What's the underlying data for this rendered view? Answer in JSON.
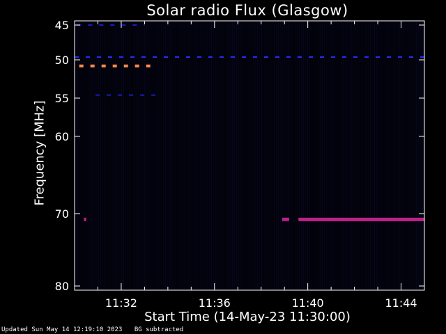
{
  "chart_data": {
    "type": "heatmap",
    "title": "Solar radio Flux (Glasgow)",
    "xlabel": "Start Time (14-May-23 11:30:00)",
    "ylabel": "Frequency [MHz]",
    "x_start": "11:30:00",
    "x_end": "11:45:00",
    "xlim_minutes": [
      0,
      15
    ],
    "x_ticks": [
      {
        "label": "11:32",
        "minute": 2
      },
      {
        "label": "11:36",
        "minute": 6
      },
      {
        "label": "11:40",
        "minute": 10
      },
      {
        "label": "11:44",
        "minute": 14
      }
    ],
    "ylim": [
      45,
      80
    ],
    "y_ticks": [
      {
        "label": "45",
        "value": 45
      },
      {
        "label": "50",
        "value": 50
      },
      {
        "label": "55",
        "value": 55
      },
      {
        "label": "60",
        "value": 60
      },
      {
        "label": "70",
        "value": 70
      },
      {
        "label": "80",
        "value": 80
      }
    ],
    "y_scale": "nonlinear",
    "features": [
      {
        "freq": 50.8,
        "start": 0.2,
        "end": 3.5,
        "dashed": true,
        "color": "#ff8c4a",
        "thick": 4
      },
      {
        "freq": 49.6,
        "start": 0.0,
        "end": 15.0,
        "dashed": true,
        "color": "#2a2aff",
        "thick": 2
      },
      {
        "freq": 54.6,
        "start": 0.9,
        "end": 3.5,
        "dashed": true,
        "color": "#1c1cc0",
        "thick": 2
      },
      {
        "freq": 45.0,
        "start": 0.1,
        "end": 3.0,
        "dashed": true,
        "color": "#1c1cc0",
        "thick": 2
      },
      {
        "freq": 70.8,
        "start": 0.4,
        "end": 0.5,
        "dashed": false,
        "color": "#c0208a",
        "thick": 5
      },
      {
        "freq": 70.8,
        "start": 8.9,
        "end": 9.2,
        "dashed": false,
        "color": "#c0208a",
        "thick": 5
      },
      {
        "freq": 70.8,
        "start": 9.6,
        "end": 15.0,
        "dashed": false,
        "color": "#c0208a",
        "thick": 5
      }
    ]
  },
  "footer": {
    "updated": "Updated Sun May 14 12:19:10 2023",
    "note": "BG subtracted"
  }
}
